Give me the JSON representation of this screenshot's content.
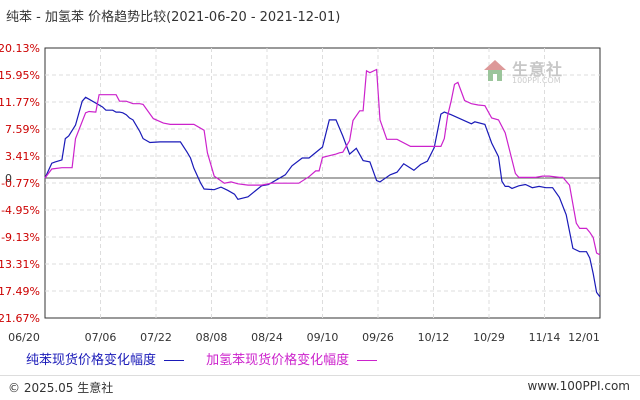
{
  "title": "纯苯 - 加氢苯 价格趋势比较(2021-06-20 - 2021-12-01)",
  "footer": {
    "copyright": "© 2025.05 生意社",
    "site": "www.100PPI.com"
  },
  "watermark": {
    "text": "生意社",
    "sub": "100PPI.COM",
    "icon": "house-logo-icon"
  },
  "chart_data": {
    "type": "line",
    "x_ticks": [
      "06/20",
      "07/06",
      "07/22",
      "08/08",
      "08/24",
      "09/10",
      "09/26",
      "10/12",
      "10/29",
      "11/14",
      "12/01"
    ],
    "y_ticks": [
      "20.13%",
      "15.95%",
      "11.77%",
      "7.59%",
      "3.41%",
      "-0.77%",
      "-4.95%",
      "-9.13%",
      "-13.31%",
      "-17.49%",
      "-21.67%"
    ],
    "ylim": [
      -21.67,
      20.13
    ],
    "xlim": [
      0,
      164
    ],
    "zero_label": "0",
    "grid": true,
    "legend_position": "bottom",
    "series": [
      {
        "name": "纯苯现货价格变化幅度",
        "color": "#1a1ab8",
        "x": [
          0,
          2,
          3,
          5,
          6,
          7,
          9,
          11,
          12,
          13,
          16,
          17,
          18,
          20,
          21,
          22,
          23,
          24,
          25,
          26,
          28,
          29,
          31,
          34,
          36,
          38,
          40,
          42,
          43,
          44,
          46,
          47,
          50,
          52,
          54,
          56,
          57,
          60,
          64,
          66,
          71,
          73,
          76,
          78,
          82,
          84,
          86,
          88,
          90,
          92,
          94,
          96,
          98,
          99,
          102,
          104,
          106,
          109,
          111,
          113,
          115,
          117,
          118,
          120,
          126,
          127,
          130,
          132,
          134,
          135,
          136,
          137,
          138,
          140,
          142,
          144,
          146,
          148,
          150,
          152,
          154,
          156,
          158,
          159,
          160,
          161,
          162,
          163,
          164
        ],
        "y": [
          0.0,
          2.3,
          2.5,
          2.8,
          6.1,
          6.5,
          8.2,
          11.9,
          12.5,
          12.2,
          11.3,
          11.0,
          10.5,
          10.5,
          10.2,
          10.2,
          10.1,
          9.8,
          9.3,
          9.0,
          7.2,
          6.1,
          5.5,
          5.6,
          5.6,
          5.6,
          5.6,
          4.0,
          3.1,
          1.5,
          -0.8,
          -1.7,
          -1.8,
          -1.4,
          -1.9,
          -2.5,
          -3.3,
          -2.9,
          -1.2,
          -1.0,
          0.5,
          1.9,
          3.1,
          3.1,
          4.8,
          9.0,
          9.0,
          6.5,
          3.7,
          4.6,
          2.7,
          2.5,
          -0.4,
          -0.6,
          0.5,
          0.9,
          2.2,
          1.2,
          2.1,
          2.6,
          4.7,
          9.9,
          10.2,
          9.8,
          8.4,
          8.7,
          8.3,
          5.4,
          3.3,
          -0.5,
          -1.3,
          -1.3,
          -1.6,
          -1.2,
          -1.0,
          -1.5,
          -1.3,
          -1.5,
          -1.5,
          -3.0,
          -5.7,
          -10.9,
          -11.4,
          -11.4,
          -11.4,
          -12.4,
          -14.8,
          -17.7,
          -18.4
        ]
      },
      {
        "name": "加氢苯现货价格变化幅度",
        "color": "#cc22cc",
        "x": [
          0,
          2,
          5,
          8,
          9,
          12,
          13,
          15,
          16,
          17,
          19,
          21,
          22,
          24,
          26,
          28,
          29,
          32,
          35,
          37,
          40,
          42,
          44,
          47,
          48,
          50,
          53,
          55,
          57,
          60,
          64,
          67,
          70,
          75,
          78,
          80,
          81,
          82,
          86,
          87,
          88,
          90,
          91,
          93,
          94,
          95,
          96,
          98,
          99,
          101,
          104,
          108,
          112,
          116,
          117,
          118,
          119,
          120,
          121,
          122,
          124,
          126,
          128,
          130,
          132,
          134,
          136,
          137,
          139,
          140,
          141,
          145,
          147,
          149,
          152,
          153,
          155,
          157,
          158,
          160,
          161,
          162,
          163,
          164
        ],
        "y": [
          -0.0,
          1.4,
          1.6,
          1.6,
          6.1,
          10.1,
          10.3,
          10.2,
          12.9,
          12.9,
          12.9,
          12.9,
          11.9,
          11.9,
          11.5,
          11.5,
          11.4,
          9.2,
          8.5,
          8.3,
          8.3,
          8.3,
          8.3,
          7.4,
          3.9,
          0.3,
          -0.8,
          -0.6,
          -0.9,
          -1.1,
          -1.1,
          -0.8,
          -0.8,
          -0.8,
          0.2,
          1.1,
          1.1,
          3.2,
          3.7,
          3.9,
          4.0,
          5.8,
          8.9,
          10.4,
          10.4,
          16.6,
          16.3,
          16.8,
          9.0,
          6.0,
          6.0,
          4.9,
          4.9,
          4.9,
          4.9,
          6.1,
          9.7,
          11.9,
          14.5,
          14.8,
          12.0,
          11.5,
          11.3,
          11.2,
          9.3,
          9.0,
          7.0,
          4.9,
          0.7,
          0.1,
          0.1,
          0.1,
          0.3,
          0.3,
          0.1,
          0.1,
          -1.1,
          -7.0,
          -7.8,
          -7.8,
          -8.4,
          -9.2,
          -11.6,
          -11.9
        ]
      }
    ]
  }
}
